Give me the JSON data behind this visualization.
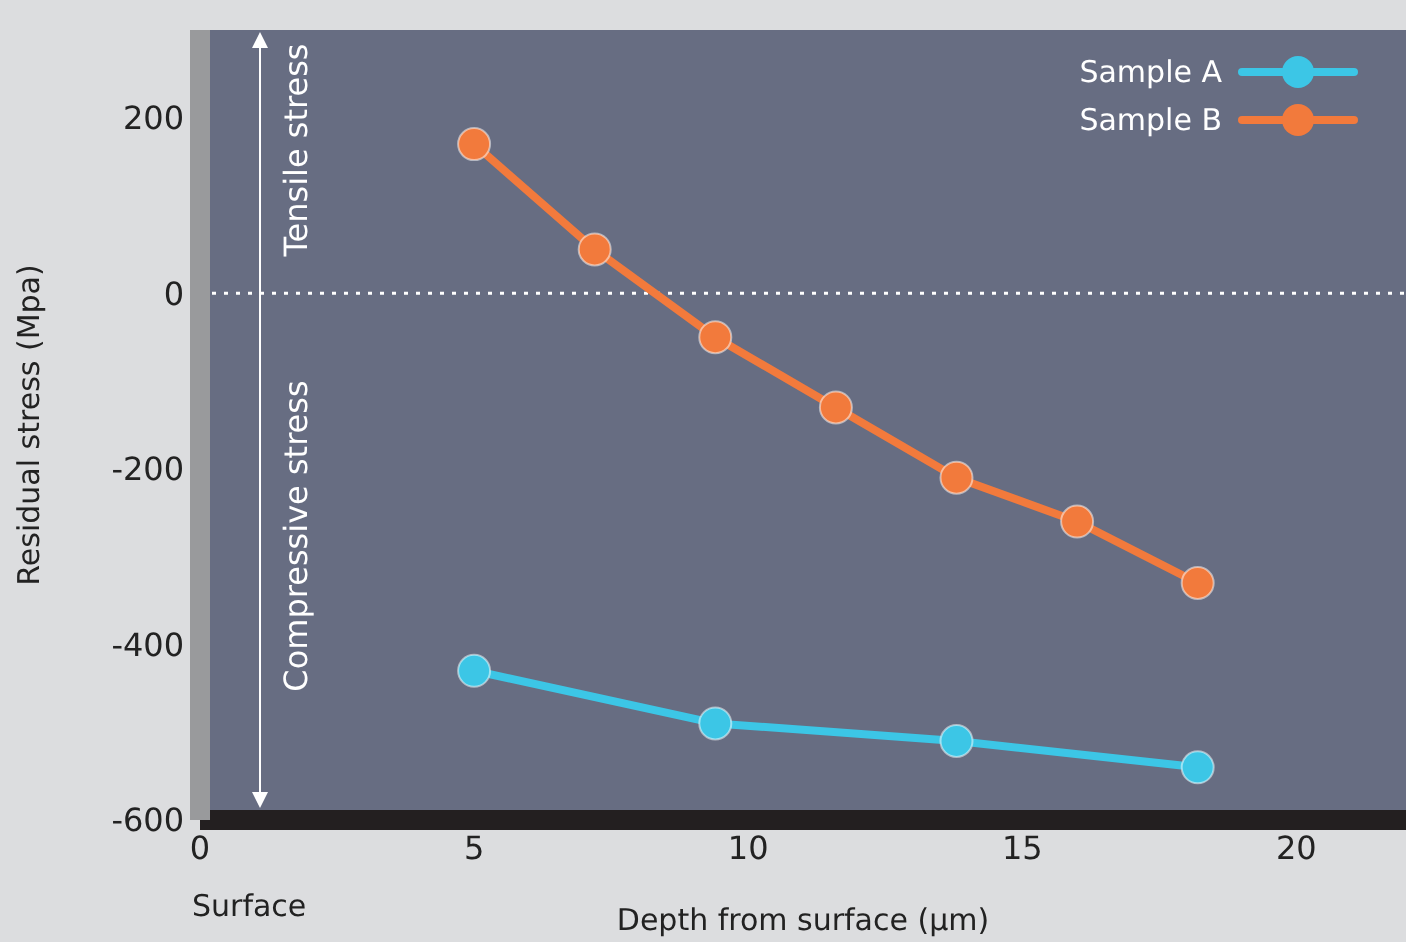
{
  "chart_data": {
    "type": "line",
    "xlabel": "Depth from surface (μm)",
    "ylabel": "Residual stress (Mpa)",
    "xlim": [
      0,
      22
    ],
    "xticks": [
      0,
      5,
      10,
      15,
      20
    ],
    "ylim": [
      -600,
      300
    ],
    "yticks": [
      -600,
      -400,
      -200,
      0,
      200
    ],
    "series": [
      {
        "name": "Sample A",
        "color": "#3cc6e6",
        "x": [
          5,
          9.4,
          13.8,
          18.2
        ],
        "values": [
          -430,
          -490,
          -510,
          -540
        ]
      },
      {
        "name": "Sample B",
        "color": "#f27a3c",
        "x": [
          5,
          7.2,
          9.4,
          11.6,
          13.8,
          16,
          18.2
        ],
        "values": [
          170,
          50,
          -50,
          -130,
          -210,
          -260,
          -330
        ]
      }
    ],
    "marker": "circle",
    "legend": "top right",
    "grid": false,
    "ref_lines": [
      {
        "axis": "y",
        "value": 0,
        "color": "#ffffff",
        "line_style": "dotted"
      }
    ],
    "annotations": [
      "Tensile stress",
      "Compressive stress",
      "Surface"
    ]
  }
}
